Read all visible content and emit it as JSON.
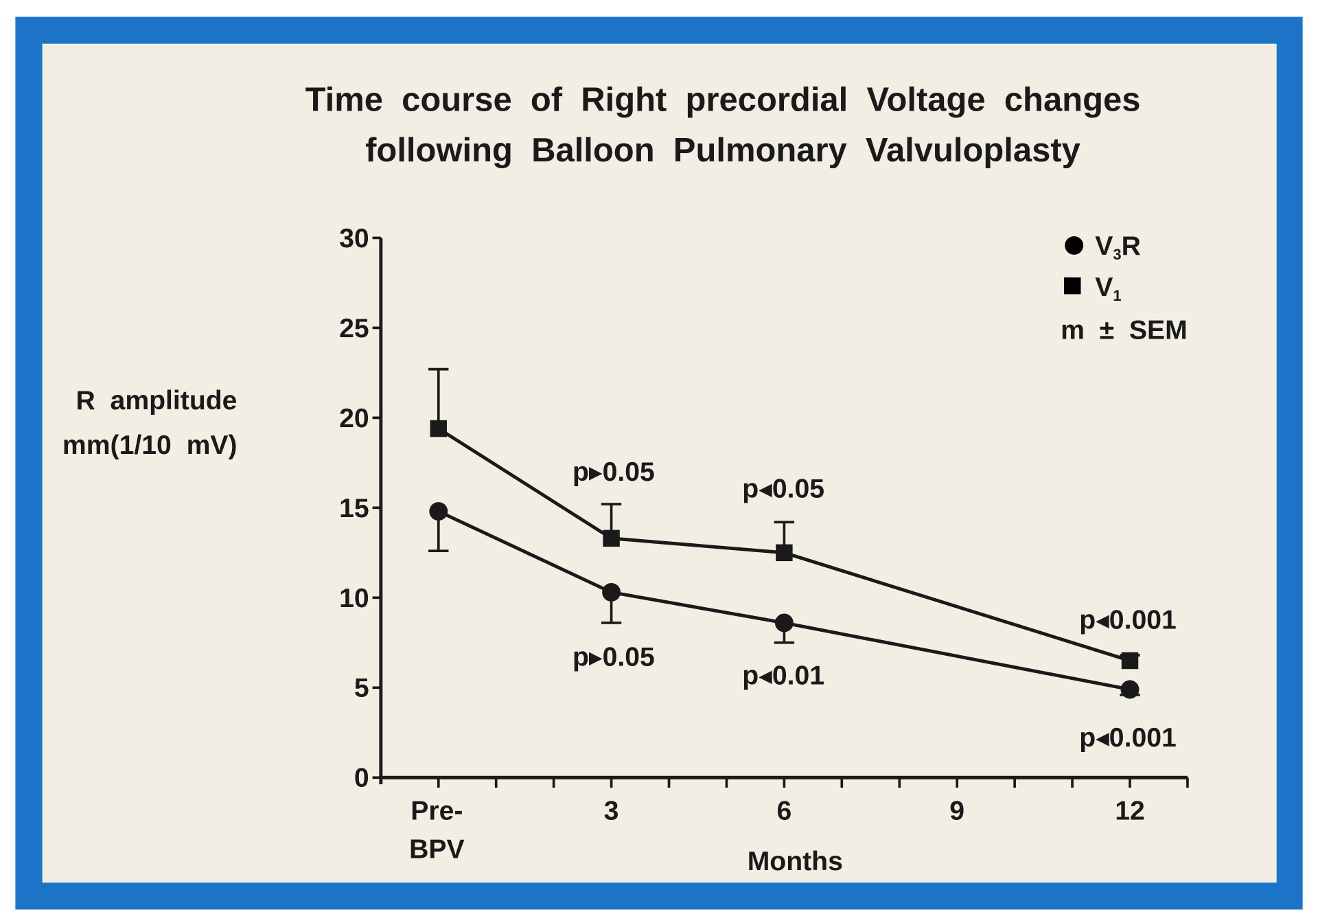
{
  "colors": {
    "frame": "#1b74c8",
    "paper": "#f2eee3",
    "ink": "#1a1a1a"
  },
  "chart_data": {
    "type": "line",
    "title_line1": "Time  course  of  Right  precordial  Voltage  changes",
    "title_line2": "following  Balloon  Pulmonary  Valvuloplasty",
    "ylabel_line1": "R  amplitude",
    "ylabel_line2": "mm(1/10  mV)",
    "xlabel": "Months",
    "ylim": [
      0,
      30
    ],
    "yticks": [
      0,
      5,
      10,
      15,
      20,
      25,
      30
    ],
    "xlim": [
      -1,
      13
    ],
    "x": [
      0,
      3,
      6,
      12
    ],
    "xtick_labels": [
      {
        "x": 0,
        "lines": [
          "Pre-",
          "BPV"
        ]
      },
      {
        "x": 3,
        "lines": [
          "3"
        ]
      },
      {
        "x": 6,
        "lines": [
          "6"
        ]
      },
      {
        "x": 9,
        "lines": [
          "9"
        ]
      },
      {
        "x": 12,
        "lines": [
          "12"
        ]
      }
    ],
    "minor_ticks_every": 1,
    "legend": {
      "placement": "top-right",
      "entries": [
        "V3R",
        "V1"
      ],
      "note": "m  ±  SEM"
    },
    "series": [
      {
        "name": "V1",
        "marker": "square",
        "values": [
          19.4,
          13.3,
          12.5,
          6.5
        ],
        "sem": [
          3.3,
          1.9,
          1.7,
          0.3
        ],
        "error_direction": "up"
      },
      {
        "name": "V3R",
        "marker": "circle",
        "values": [
          14.8,
          10.3,
          8.6,
          4.9
        ],
        "sem": [
          2.2,
          1.7,
          1.1,
          0.3
        ],
        "error_direction": "down"
      }
    ],
    "annotations": [
      {
        "text": "p▸0.05",
        "series": "V1",
        "x": 3
      },
      {
        "text": "p◂0.05",
        "series": "V1",
        "x": 6
      },
      {
        "text": "p◂0.001",
        "series": "V1",
        "x": 12
      },
      {
        "text": "p▸0.05",
        "series": "V3R",
        "x": 3
      },
      {
        "text": "p◂0.01",
        "series": "V3R",
        "x": 6
      },
      {
        "text": "p◂0.001",
        "series": "V3R",
        "x": 12
      }
    ]
  }
}
